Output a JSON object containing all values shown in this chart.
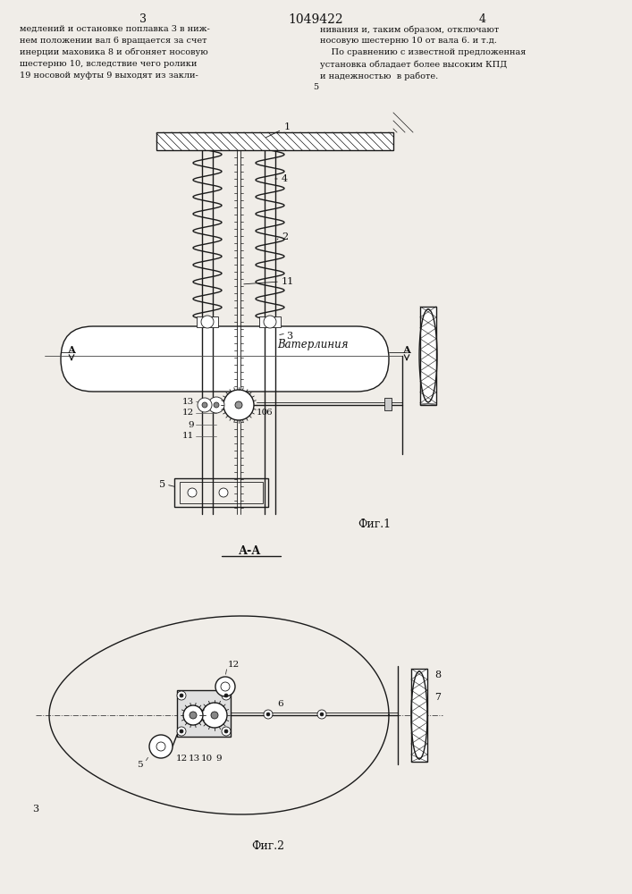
{
  "title": "1049422",
  "page_left": "3",
  "page_right": "4",
  "bg_color": "#f0ede8",
  "line_color": "#1a1a1a",
  "text_color": "#111111",
  "waterline_label": "Ватерлиния",
  "fig1_label": "Фиг.1",
  "fig2_label": "Фиг.2",
  "section_label": "А-А",
  "text_left": "медлений и остановке поплавка 3 в ниж-\nнем положении вал 6 вращается за счет\nинерции маховика 8 и обгоняет носовую\nшестерню 10, вследствие чего ролики\n19 носовой муфты 9 выходят из закли-",
  "text_right": "нивания и, таким образом, отключают\nносовую шестерню 10 от вала 6. и т.д.\n    По сравнению с известной предложенная\nустановка обладает более высоким КПД\nи надежностью  в работе.",
  "line_number_5": "5"
}
